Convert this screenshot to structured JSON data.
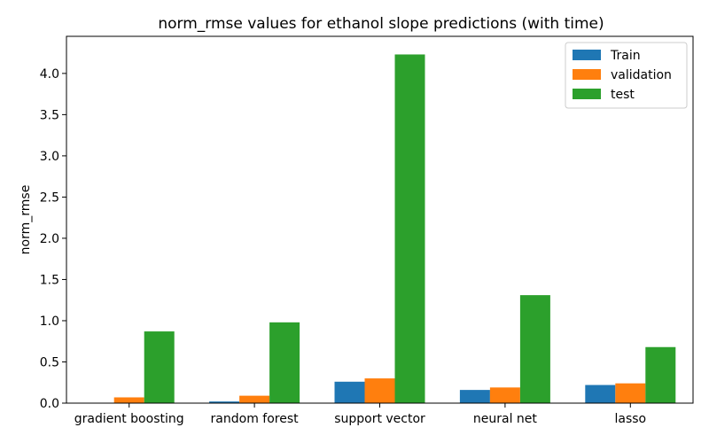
{
  "chart_data": {
    "type": "bar",
    "title": "norm_rmse values for ethanol slope predictions (with time)",
    "xlabel": "",
    "ylabel": "norm_rmse",
    "categories": [
      "gradient boosting",
      "random forest",
      "support vector",
      "neural net",
      "lasso"
    ],
    "series": [
      {
        "name": "Train",
        "color": "#1f77b4",
        "values": [
          0.0,
          0.02,
          0.26,
          0.16,
          0.22
        ]
      },
      {
        "name": "validation",
        "color": "#ff7f0e",
        "values": [
          0.07,
          0.09,
          0.3,
          0.19,
          0.24
        ]
      },
      {
        "name": "test",
        "color": "#2ca02c",
        "values": [
          0.87,
          0.98,
          4.23,
          1.31,
          0.68
        ]
      }
    ],
    "ylim": [
      0,
      4.45
    ],
    "yticks": [
      0.0,
      0.5,
      1.0,
      1.5,
      2.0,
      2.5,
      3.0,
      3.5,
      4.0
    ],
    "ytick_labels": [
      "0.0",
      "0.5",
      "1.0",
      "1.5",
      "2.0",
      "2.5",
      "3.0",
      "3.5",
      "4.0"
    ],
    "grid": false,
    "legend_position": "top-right"
  }
}
